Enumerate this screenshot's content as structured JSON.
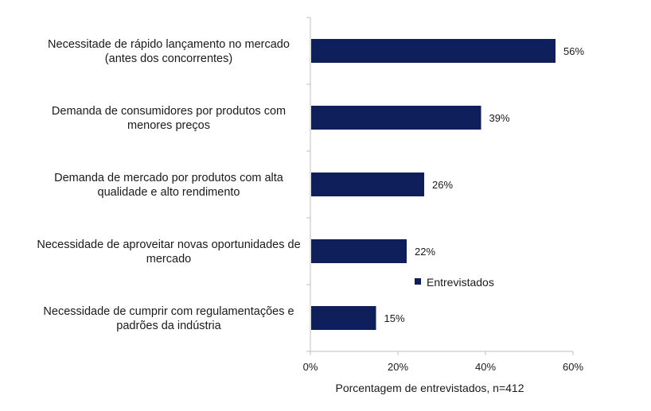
{
  "chart_data": {
    "type": "bar",
    "orientation": "horizontal",
    "categories": [
      [
        "Necessitade de rápido lançamento no mercado",
        "(antes dos concorrentes)"
      ],
      [
        "Demanda de consumidores por produtos com",
        "menores preços"
      ],
      [
        "Demanda de mercado por produtos com alta",
        "qualidade e alto rendimento"
      ],
      [
        "Necessidade de aproveitar novas oportunidades de",
        "mercado"
      ],
      [
        "Necessidade de cumprir com regulamentações e",
        "padrões da indústria"
      ]
    ],
    "series": [
      {
        "name": "Entrevistados",
        "values": [
          56,
          39,
          26,
          22,
          15
        ],
        "labels": [
          "56%",
          "39%",
          "26%",
          "22%",
          "15%"
        ],
        "color": "#0f1f5c"
      }
    ],
    "xlim": [
      0,
      60
    ],
    "xticks": [
      0,
      20,
      40,
      60
    ],
    "xtick_labels": [
      "0%",
      "20%",
      "40%",
      "60%"
    ],
    "xlabel": "Porcentagem de entrevistados, n=412",
    "legend": {
      "position": "inside-right",
      "entries": [
        "Entrevistados"
      ]
    },
    "grid": false,
    "colors": {
      "bar": "#0f1f5c",
      "axis": "#bfbfbf",
      "text": "#1a1a1a"
    }
  }
}
